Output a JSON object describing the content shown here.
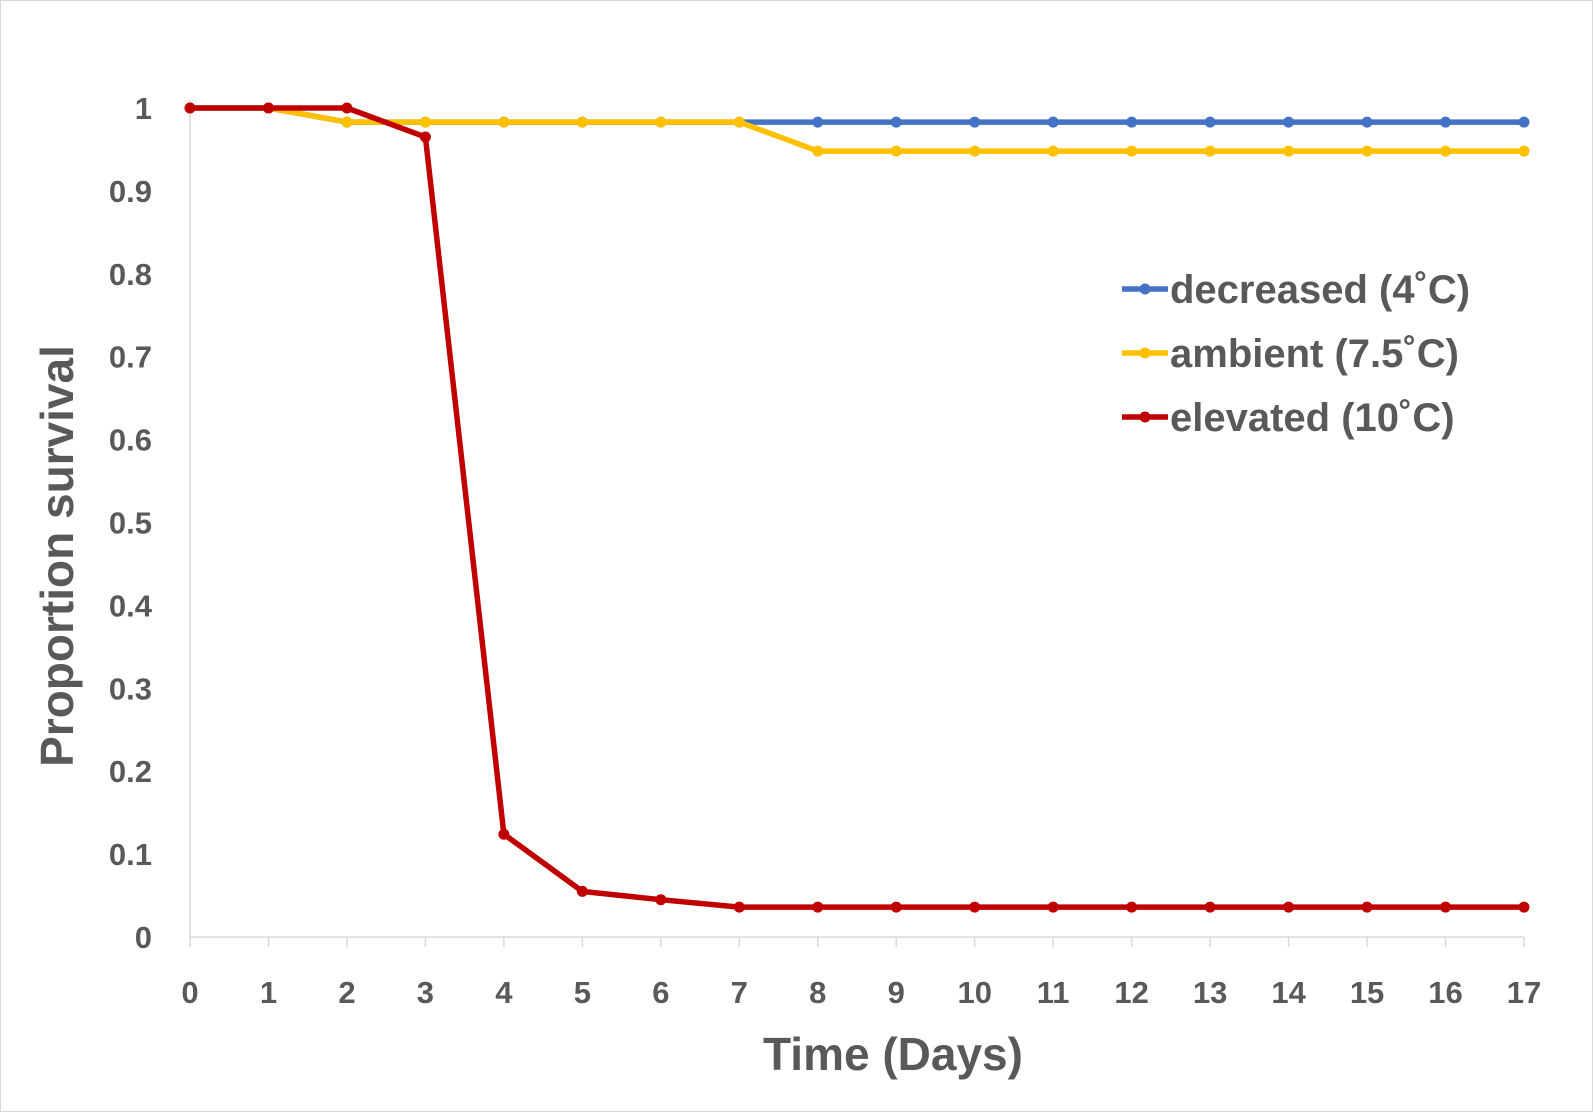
{
  "chart_data": {
    "type": "line",
    "title": "",
    "xlabel": "Time (Days)",
    "ylabel": "Proportion survival",
    "x": [
      0,
      1,
      2,
      3,
      4,
      5,
      6,
      7,
      8,
      9,
      10,
      11,
      12,
      13,
      14,
      15,
      16,
      17
    ],
    "xlim": [
      0,
      17
    ],
    "ylim": [
      0,
      1
    ],
    "x_ticks": [
      0,
      1,
      2,
      3,
      4,
      5,
      6,
      7,
      8,
      9,
      10,
      11,
      12,
      13,
      14,
      15,
      16,
      17
    ],
    "y_ticks": [
      "0",
      "0.1",
      "0.2",
      "0.3",
      "0.4",
      "0.5",
      "0.6",
      "0.7",
      "0.8",
      "0.9",
      "1"
    ],
    "grid": false,
    "legend_position": "right",
    "series": [
      {
        "name": "decreased (4˚C)",
        "color": "#4472C4",
        "values": [
          1,
          1,
          0.983,
          0.983,
          0.983,
          0.983,
          0.983,
          0.983,
          0.983,
          0.983,
          0.983,
          0.983,
          0.983,
          0.983,
          0.983,
          0.983,
          0.983,
          0.983
        ]
      },
      {
        "name": "ambient (7.5˚C)",
        "color": "#FFC000",
        "values": [
          1,
          1,
          0.983,
          0.983,
          0.983,
          0.983,
          0.983,
          0.983,
          0.948,
          0.948,
          0.948,
          0.948,
          0.948,
          0.948,
          0.948,
          0.948,
          0.948,
          0.948
        ]
      },
      {
        "name": "elevated (10˚C)",
        "color": "#C00000",
        "values": [
          1,
          1,
          1,
          0.965,
          0.124,
          0.055,
          0.045,
          0.036,
          0.036,
          0.036,
          0.036,
          0.036,
          0.036,
          0.036,
          0.036,
          0.036,
          0.036,
          0.036
        ]
      }
    ]
  }
}
